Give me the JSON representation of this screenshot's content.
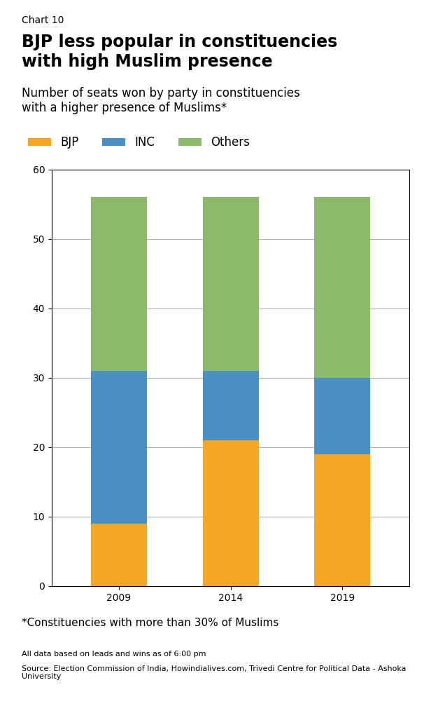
{
  "chart_data": {
    "type": "bar",
    "title": "BJP less popular in constituencies\nwith high Muslim presence",
    "subtitle": "Number of seats won by party in constituencies\nwith a higher presence of Muslims*",
    "annotations": [
      "Chart 10",
      "*Constituencies with more than 30% of Muslims",
      "All data based on leads and wins as of 6:00 pm",
      "Source: Election Commission of India, Howindialives.com, Trivedi Centre for Political Data - Ashoka University"
    ],
    "categories": [
      "2009",
      "2014",
      "2019"
    ],
    "series": [
      {
        "name": "BJP",
        "color": "#F5A623",
        "values": [
          9,
          21,
          19
        ]
      },
      {
        "name": "INC",
        "color": "#4A90C4",
        "values": [
          22,
          10,
          11
        ]
      },
      {
        "name": "Others",
        "color": "#8DB96A",
        "values": [
          25,
          25,
          26
        ]
      }
    ],
    "stacked": true,
    "ylim": [
      0,
      60
    ],
    "yticks": [
      0,
      10,
      20,
      30,
      40,
      50,
      60
    ],
    "grid": true,
    "legend": "upper left"
  }
}
